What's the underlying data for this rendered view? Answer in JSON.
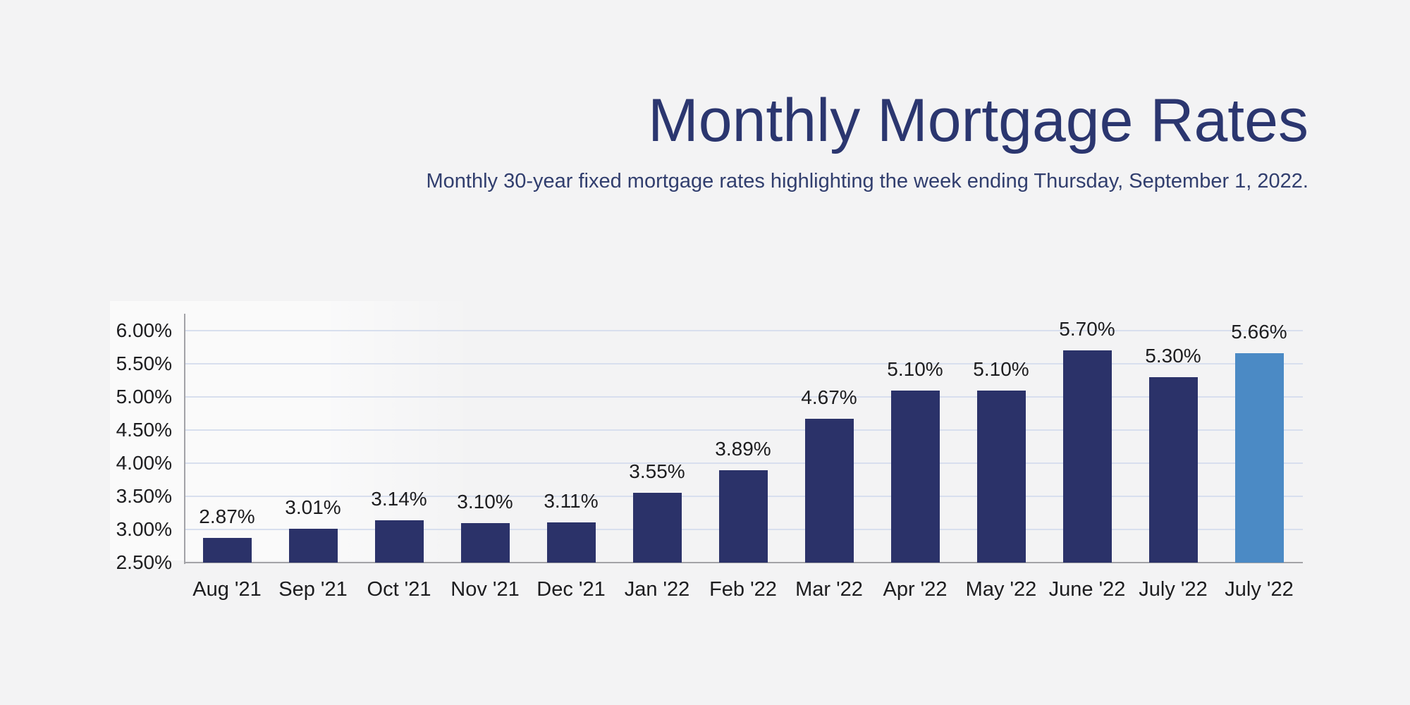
{
  "chart_data": {
    "type": "bar",
    "title": "Monthly Mortgage Rates",
    "subtitle": "Monthly 30-year fixed mortgage rates highlighting the week ending Thursday, September 1, 2022.",
    "categories": [
      "Aug '21",
      "Sep '21",
      "Oct '21",
      "Nov '21",
      "Dec '21",
      "Jan '22",
      "Feb '22",
      "Mar '22",
      "Apr '22",
      "May '22",
      "June '22",
      "July '22",
      "July '22"
    ],
    "values": [
      2.87,
      3.01,
      3.14,
      3.1,
      3.11,
      3.55,
      3.89,
      4.67,
      5.1,
      5.1,
      5.7,
      5.3,
      5.66
    ],
    "value_labels": [
      "2.87%",
      "3.01%",
      "3.14%",
      "3.10%",
      "3.11%",
      "3.55%",
      "3.89%",
      "4.67%",
      "5.10%",
      "5.10%",
      "5.70%",
      "5.30%",
      "5.66%"
    ],
    "y_tick_labels": [
      "6.00%",
      "5.50%",
      "5.00%",
      "4.50%",
      "4.00%",
      "3.50%",
      "3.00%",
      "2.50%"
    ],
    "y_tick_values": [
      6.0,
      5.5,
      5.0,
      4.5,
      4.0,
      3.5,
      3.0,
      2.5
    ],
    "ylim": [
      2.5,
      6.25
    ],
    "xlabel": "",
    "ylabel": "",
    "grid": true,
    "legend": "none",
    "highlight_index": 12,
    "colors": {
      "bar": "#2b3269",
      "highlight_bar": "#4b8ac5",
      "gridline": "#d8dfee",
      "axis": "#a3a3a7",
      "label_text": "#1d1d1f",
      "title": "#2b366f",
      "subtitle": "#313e6e",
      "background": "#f3f3f4"
    }
  }
}
